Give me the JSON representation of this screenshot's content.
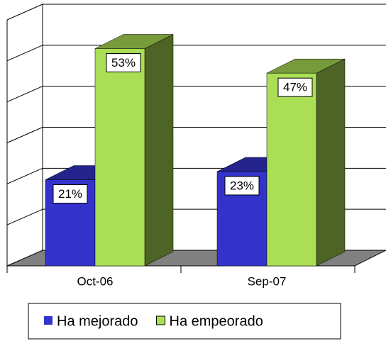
{
  "chart_data": {
    "type": "bar3d",
    "categories": [
      "Oct-06",
      "Sep-07"
    ],
    "series": [
      {
        "name": "Ha mejorado",
        "color": "#3333cc",
        "values": [
          21,
          23
        ],
        "value_labels": [
          "21%",
          "23%"
        ]
      },
      {
        "name": "Ha empeorado",
        "color": "#aade55",
        "values": [
          53,
          47
        ],
        "value_labels": [
          "53%",
          "47%"
        ]
      }
    ],
    "ylim": [
      0,
      60
    ],
    "yticks": [
      0,
      10,
      20,
      30,
      40,
      50,
      60
    ],
    "grid": true,
    "legend": "bottom"
  }
}
